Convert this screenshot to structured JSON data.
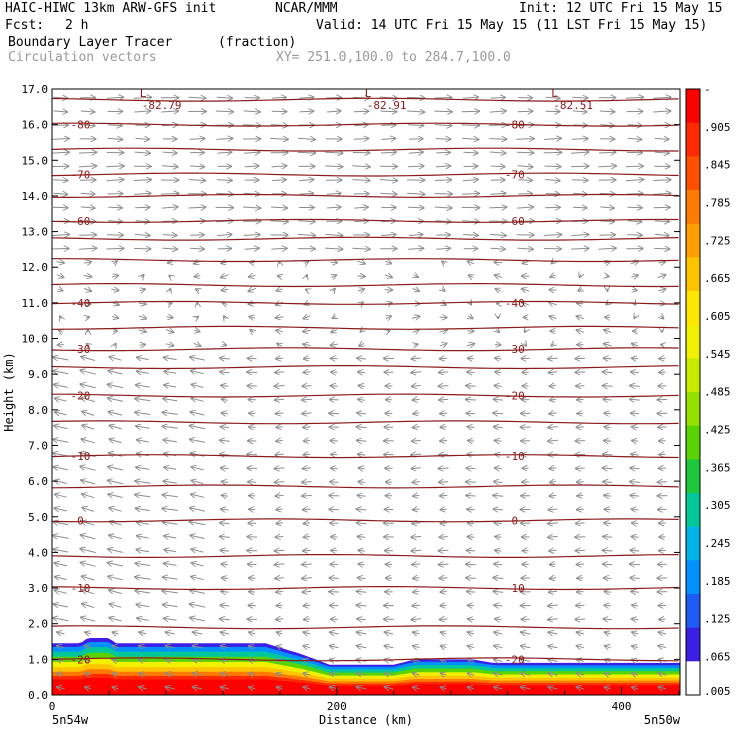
{
  "header": {
    "model": "HAIC-HIWC 13km ARW-GFS init",
    "org": "NCAR/MMM",
    "init": "Init: 12 UTC Fri 15 May 15",
    "fcst_label": "Fcst:",
    "fcst_value": "2 h",
    "valid": "Valid: 14 UTC Fri 15 May 15 (11 LST Fri 15 May 15)",
    "field": "Boundary Layer Tracer",
    "units": "(fraction)",
    "vectors": "Circulation vectors",
    "xy": "XY= 251.0,100.0 to 284.7,100.0"
  },
  "colors": {
    "contour": "#8b1a1a",
    "vector": "#8c8c8c",
    "frame": "#000000"
  },
  "chart_data": {
    "type": "heatmap",
    "xlabel": "Distance (km)",
    "ylabel": "Height (km)",
    "xlim": [
      0,
      441
    ],
    "ylim": [
      0,
      17
    ],
    "x_ticks": [
      "0",
      "200",
      "400"
    ],
    "x_tick_values": [
      0,
      200,
      400
    ],
    "x_end_labels": [
      "5n54w",
      "5n50w"
    ],
    "y_ticks": [
      "0.0",
      "1.0",
      "2.0",
      "3.0",
      "4.0",
      "5.0",
      "6.0",
      "7.0",
      "8.0",
      "9.0",
      "10.0",
      "11.0",
      "12.0",
      "13.0",
      "14.0",
      "15.0",
      "16.0",
      "17.0"
    ],
    "colorbar": {
      "labels": [
        "-",
        ".905",
        ".845",
        ".785",
        ".725",
        ".665",
        ".605",
        ".545",
        ".485",
        ".425",
        ".365",
        ".305",
        ".245",
        ".185",
        ".125",
        ".065",
        ".005"
      ],
      "colors": [
        "#ff0000",
        "#ff2a00",
        "#ff5000",
        "#ff7a00",
        "#ffa000",
        "#ffc400",
        "#ffe600",
        "#f0f000",
        "#c8ec00",
        "#96e000",
        "#5ad400",
        "#1ec83c",
        "#00c89a",
        "#00b4e6",
        "#0090ff",
        "#1e5af5",
        "#3c1ee6",
        "#ffffff"
      ]
    },
    "tracer_layer_top_km": [
      [
        0,
        1.45
      ],
      [
        20,
        1.45
      ],
      [
        25,
        1.6
      ],
      [
        40,
        1.6
      ],
      [
        45,
        1.45
      ],
      [
        150,
        1.45
      ],
      [
        175,
        1.15
      ],
      [
        195,
        0.85
      ],
      [
        240,
        0.85
      ],
      [
        255,
        1.0
      ],
      [
        295,
        1.0
      ],
      [
        310,
        0.9
      ],
      [
        380,
        0.9
      ],
      [
        441,
        0.9
      ]
    ],
    "temperature_contours": [
      {
        "label": "-20",
        "y_km": 1.0
      },
      {
        "label": "",
        "y_km": 1.9
      },
      {
        "label": "-10",
        "y_km": 3.0
      },
      {
        "label": "",
        "y_km": 3.9
      },
      {
        "label": "0",
        "y_km": 4.9
      },
      {
        "label": "",
        "y_km": 5.85
      },
      {
        "label": "-10",
        "y_km": 6.7
      },
      {
        "label": "",
        "y_km": 7.65
      },
      {
        "label": "-20",
        "y_km": 8.4
      },
      {
        "label": "",
        "y_km": 9.2
      },
      {
        "label": "-30",
        "y_km": 9.7
      },
      {
        "label": "",
        "y_km": 10.3
      },
      {
        "label": "-40",
        "y_km": 11.0
      },
      {
        "label": "",
        "y_km": 11.5
      },
      {
        "label": "",
        "y_km": 12.2
      },
      {
        "label": "",
        "y_km": 12.8
      },
      {
        "label": "-60",
        "y_km": 13.3
      },
      {
        "label": "",
        "y_km": 14.0
      },
      {
        "label": "-70",
        "y_km": 14.6
      },
      {
        "label": "",
        "y_km": 15.3
      },
      {
        "label": "-80",
        "y_km": 16.0
      },
      {
        "label": "",
        "y_km": 16.7
      }
    ],
    "low_markers": [
      {
        "x_km": 63,
        "label": "-82.79"
      },
      {
        "x_km": 221,
        "label": "-82.91"
      },
      {
        "x_km": 352,
        "label": "-82.51"
      }
    ],
    "low_symbol": "L"
  }
}
